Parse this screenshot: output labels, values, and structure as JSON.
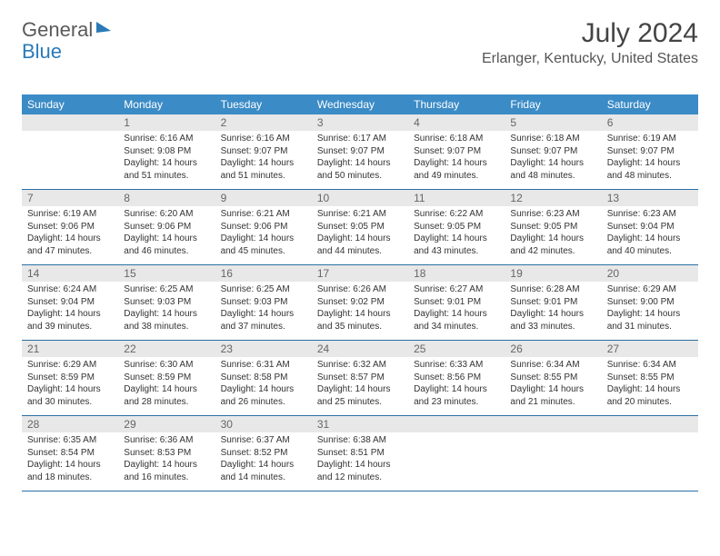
{
  "logo": {
    "text1": "General",
    "text2": "Blue"
  },
  "title": "July 2024",
  "location": "Erlanger, Kentucky, United States",
  "colors": {
    "header_bg": "#3b8bc6",
    "header_text": "#ffffff",
    "daynum_bg": "#e8e8e8",
    "daynum_text": "#666666",
    "border": "#2a6fa3",
    "body_text": "#333333",
    "logo_general": "#5a5a5a",
    "logo_blue": "#2a7ab8"
  },
  "dow": [
    "Sunday",
    "Monday",
    "Tuesday",
    "Wednesday",
    "Thursday",
    "Friday",
    "Saturday"
  ],
  "weeks": [
    [
      {
        "n": "",
        "lines": []
      },
      {
        "n": "1",
        "lines": [
          "Sunrise: 6:16 AM",
          "Sunset: 9:08 PM",
          "Daylight: 14 hours",
          "and 51 minutes."
        ]
      },
      {
        "n": "2",
        "lines": [
          "Sunrise: 6:16 AM",
          "Sunset: 9:07 PM",
          "Daylight: 14 hours",
          "and 51 minutes."
        ]
      },
      {
        "n": "3",
        "lines": [
          "Sunrise: 6:17 AM",
          "Sunset: 9:07 PM",
          "Daylight: 14 hours",
          "and 50 minutes."
        ]
      },
      {
        "n": "4",
        "lines": [
          "Sunrise: 6:18 AM",
          "Sunset: 9:07 PM",
          "Daylight: 14 hours",
          "and 49 minutes."
        ]
      },
      {
        "n": "5",
        "lines": [
          "Sunrise: 6:18 AM",
          "Sunset: 9:07 PM",
          "Daylight: 14 hours",
          "and 48 minutes."
        ]
      },
      {
        "n": "6",
        "lines": [
          "Sunrise: 6:19 AM",
          "Sunset: 9:07 PM",
          "Daylight: 14 hours",
          "and 48 minutes."
        ]
      }
    ],
    [
      {
        "n": "7",
        "lines": [
          "Sunrise: 6:19 AM",
          "Sunset: 9:06 PM",
          "Daylight: 14 hours",
          "and 47 minutes."
        ]
      },
      {
        "n": "8",
        "lines": [
          "Sunrise: 6:20 AM",
          "Sunset: 9:06 PM",
          "Daylight: 14 hours",
          "and 46 minutes."
        ]
      },
      {
        "n": "9",
        "lines": [
          "Sunrise: 6:21 AM",
          "Sunset: 9:06 PM",
          "Daylight: 14 hours",
          "and 45 minutes."
        ]
      },
      {
        "n": "10",
        "lines": [
          "Sunrise: 6:21 AM",
          "Sunset: 9:05 PM",
          "Daylight: 14 hours",
          "and 44 minutes."
        ]
      },
      {
        "n": "11",
        "lines": [
          "Sunrise: 6:22 AM",
          "Sunset: 9:05 PM",
          "Daylight: 14 hours",
          "and 43 minutes."
        ]
      },
      {
        "n": "12",
        "lines": [
          "Sunrise: 6:23 AM",
          "Sunset: 9:05 PM",
          "Daylight: 14 hours",
          "and 42 minutes."
        ]
      },
      {
        "n": "13",
        "lines": [
          "Sunrise: 6:23 AM",
          "Sunset: 9:04 PM",
          "Daylight: 14 hours",
          "and 40 minutes."
        ]
      }
    ],
    [
      {
        "n": "14",
        "lines": [
          "Sunrise: 6:24 AM",
          "Sunset: 9:04 PM",
          "Daylight: 14 hours",
          "and 39 minutes."
        ]
      },
      {
        "n": "15",
        "lines": [
          "Sunrise: 6:25 AM",
          "Sunset: 9:03 PM",
          "Daylight: 14 hours",
          "and 38 minutes."
        ]
      },
      {
        "n": "16",
        "lines": [
          "Sunrise: 6:25 AM",
          "Sunset: 9:03 PM",
          "Daylight: 14 hours",
          "and 37 minutes."
        ]
      },
      {
        "n": "17",
        "lines": [
          "Sunrise: 6:26 AM",
          "Sunset: 9:02 PM",
          "Daylight: 14 hours",
          "and 35 minutes."
        ]
      },
      {
        "n": "18",
        "lines": [
          "Sunrise: 6:27 AM",
          "Sunset: 9:01 PM",
          "Daylight: 14 hours",
          "and 34 minutes."
        ]
      },
      {
        "n": "19",
        "lines": [
          "Sunrise: 6:28 AM",
          "Sunset: 9:01 PM",
          "Daylight: 14 hours",
          "and 33 minutes."
        ]
      },
      {
        "n": "20",
        "lines": [
          "Sunrise: 6:29 AM",
          "Sunset: 9:00 PM",
          "Daylight: 14 hours",
          "and 31 minutes."
        ]
      }
    ],
    [
      {
        "n": "21",
        "lines": [
          "Sunrise: 6:29 AM",
          "Sunset: 8:59 PM",
          "Daylight: 14 hours",
          "and 30 minutes."
        ]
      },
      {
        "n": "22",
        "lines": [
          "Sunrise: 6:30 AM",
          "Sunset: 8:59 PM",
          "Daylight: 14 hours",
          "and 28 minutes."
        ]
      },
      {
        "n": "23",
        "lines": [
          "Sunrise: 6:31 AM",
          "Sunset: 8:58 PM",
          "Daylight: 14 hours",
          "and 26 minutes."
        ]
      },
      {
        "n": "24",
        "lines": [
          "Sunrise: 6:32 AM",
          "Sunset: 8:57 PM",
          "Daylight: 14 hours",
          "and 25 minutes."
        ]
      },
      {
        "n": "25",
        "lines": [
          "Sunrise: 6:33 AM",
          "Sunset: 8:56 PM",
          "Daylight: 14 hours",
          "and 23 minutes."
        ]
      },
      {
        "n": "26",
        "lines": [
          "Sunrise: 6:34 AM",
          "Sunset: 8:55 PM",
          "Daylight: 14 hours",
          "and 21 minutes."
        ]
      },
      {
        "n": "27",
        "lines": [
          "Sunrise: 6:34 AM",
          "Sunset: 8:55 PM",
          "Daylight: 14 hours",
          "and 20 minutes."
        ]
      }
    ],
    [
      {
        "n": "28",
        "lines": [
          "Sunrise: 6:35 AM",
          "Sunset: 8:54 PM",
          "Daylight: 14 hours",
          "and 18 minutes."
        ]
      },
      {
        "n": "29",
        "lines": [
          "Sunrise: 6:36 AM",
          "Sunset: 8:53 PM",
          "Daylight: 14 hours",
          "and 16 minutes."
        ]
      },
      {
        "n": "30",
        "lines": [
          "Sunrise: 6:37 AM",
          "Sunset: 8:52 PM",
          "Daylight: 14 hours",
          "and 14 minutes."
        ]
      },
      {
        "n": "31",
        "lines": [
          "Sunrise: 6:38 AM",
          "Sunset: 8:51 PM",
          "Daylight: 14 hours",
          "and 12 minutes."
        ]
      },
      {
        "n": "",
        "lines": []
      },
      {
        "n": "",
        "lines": []
      },
      {
        "n": "",
        "lines": []
      }
    ]
  ]
}
